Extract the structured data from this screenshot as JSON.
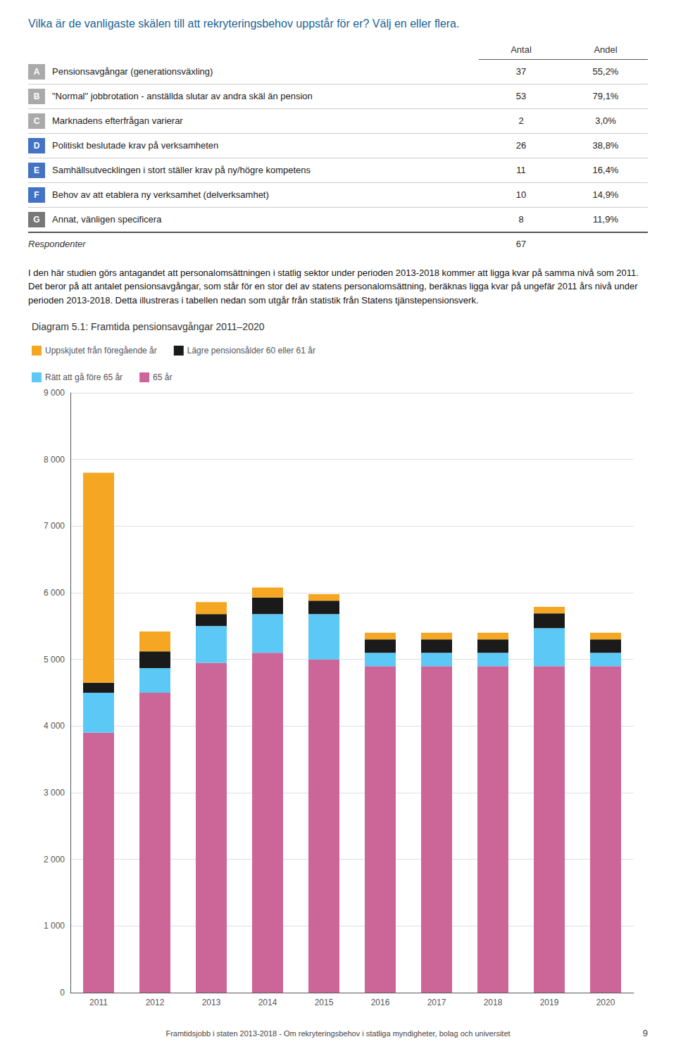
{
  "chart_data": [
    {
      "type": "table",
      "title": "Vilka är de vanligaste skälen till att rekryteringsbehov uppstår för er? Välj en eller flera.",
      "categories": [
        "A",
        "B",
        "C",
        "D",
        "E",
        "F",
        "G"
      ],
      "row_labels": [
        "Pensionsavgångar (generationsväxling)",
        "\"Normal\" jobbrotation - anställda slutar av andra skäl än pension",
        "Marknadens efterfrågan varierar",
        "Politiskt beslutade krav på verksamheten",
        "Samhällsutvecklingen i stort ställer krav på ny/högre kompetens",
        "Behov av att etablera ny verksamhet (delverksamhet)",
        "Annat, vänligen specificera"
      ],
      "colors": [
        "#AAAAAA",
        "#AAAAAA",
        "#AAAAAA",
        "#4472C4",
        "#4472C4",
        "#4472C4",
        "#777777"
      ],
      "series": [
        {
          "name": "Antal",
          "values": [
            37,
            53,
            2,
            26,
            11,
            10,
            8
          ]
        },
        {
          "name": "Andel",
          "values": [
            55.2,
            79.1,
            3.0,
            38.8,
            16.4,
            14.9,
            11.9
          ],
          "value_labels": [
            "55,2%",
            "79,1%",
            "3,0%",
            "38,8%",
            "16,4%",
            "14,9%",
            "11,9%"
          ]
        }
      ],
      "total": {
        "label": "Respondenter",
        "value": 67
      }
    },
    {
      "type": "bar",
      "title": "Diagram 5.1: Framtida pensionsavgångar 2011–2020",
      "categories": [
        "2011",
        "2012",
        "2013",
        "2014",
        "2015",
        "2016",
        "2017",
        "2018",
        "2019",
        "2020"
      ],
      "series": [
        {
          "name": "65 år",
          "color": "#CC6699",
          "values": [
            3900,
            4500,
            4950,
            5100,
            5000,
            4900,
            4900,
            4900,
            4900,
            4900
          ]
        },
        {
          "name": "Rätt att gå före 65 år",
          "color": "#5BC8F5",
          "values": [
            600,
            370,
            550,
            580,
            680,
            200,
            200,
            200,
            570,
            200
          ]
        },
        {
          "name": "Lägre pensionsålder 60 eller 61 år",
          "color": "#1A1A1A",
          "values": [
            150,
            250,
            180,
            250,
            200,
            200,
            200,
            200,
            220,
            200
          ]
        },
        {
          "name": "Uppskjutet från föregående år",
          "color": "#F5A623",
          "values": [
            3150,
            300,
            180,
            150,
            100,
            100,
            100,
            100,
            100,
            100
          ]
        }
      ],
      "stacked": true,
      "ylim": [
        0,
        9000
      ],
      "yticks": [
        0,
        {
          "value": 1000,
          "label": "1 000"
        },
        {
          "value": 2000,
          "label": "2 000"
        },
        {
          "value": 3000,
          "label": "3 000"
        },
        {
          "value": 4000,
          "label": "4 000"
        },
        {
          "value": 5000,
          "label": "5 000"
        },
        {
          "value": 6000,
          "label": "6 000"
        },
        {
          "value": 7000,
          "label": "7 000"
        },
        {
          "value": 8000,
          "label": "8 000"
        },
        {
          "value": 9000,
          "label": "9 000"
        }
      ],
      "grid": true,
      "legend": "upper left"
    }
  ],
  "text": "I den här studien görs antagandet att personalomsättningen i statlig sektor under perioden 2013-2018 kommer att ligga kvar på samma nivå som 2011. Det beror på att antalet pensionsavgångar, som står för en stor del av statens personalomsättning, beräknas ligga kvar på ungefär 2011 års nivå under perioden 2013-2018. Detta illustreras i tabellen nedan som utgår från statistik från Statens tjänstepensionsverk.",
  "footer": "Framtidsjobb i staten 2013-2018 - Om rekryteringsbehov i statliga myndigheter, bolag och universitet",
  "page_number": 9
}
